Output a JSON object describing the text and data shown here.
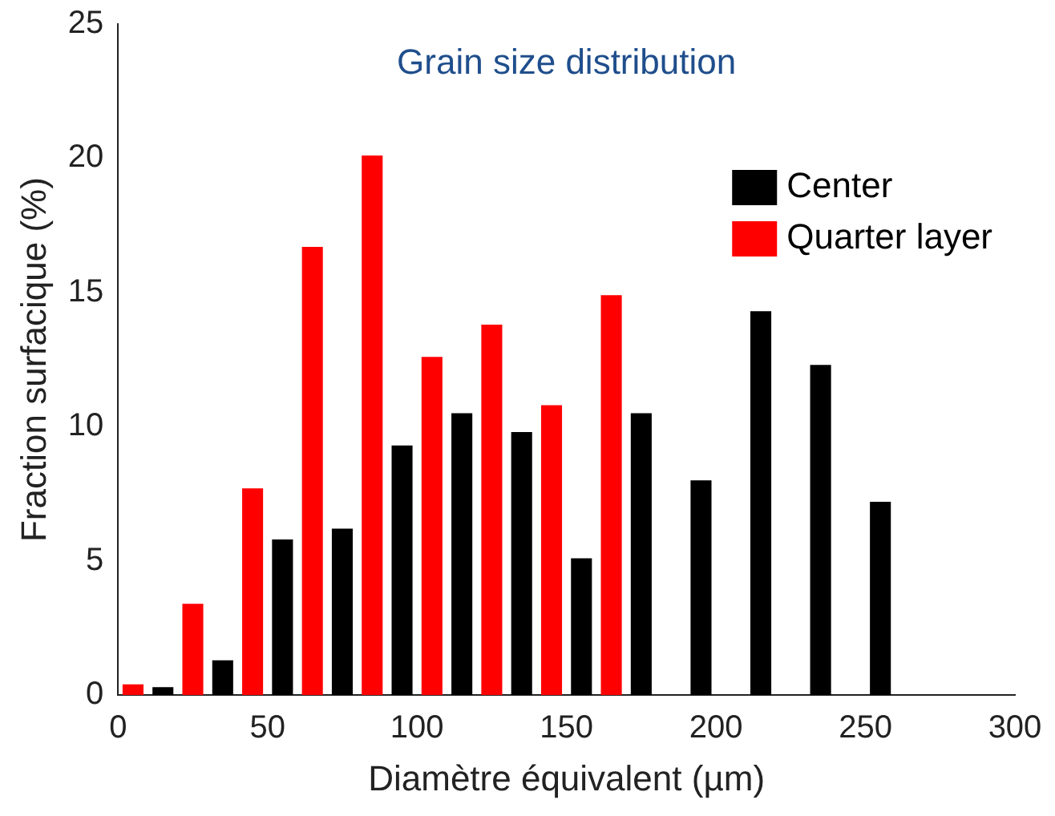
{
  "chart_data": {
    "type": "bar",
    "title": "Grain size distribution",
    "xlabel": "Diamètre équivalent (µm)",
    "ylabel": "Fraction surfacique (%)",
    "x": [
      10,
      30,
      50,
      70,
      90,
      110,
      130,
      150,
      170,
      190,
      210,
      230,
      250
    ],
    "series": [
      {
        "name": "Center",
        "color": "#000000",
        "values": [
          0.3,
          1.3,
          5.8,
          6.2,
          9.3,
          10.5,
          9.8,
          5.1,
          10.5,
          8.0,
          14.3,
          12.3,
          7.2
        ]
      },
      {
        "name": "Quarter layer",
        "color": "#ff0000",
        "values": [
          0.4,
          3.4,
          7.7,
          16.7,
          20.1,
          12.6,
          13.8,
          10.8,
          14.9,
          0,
          0,
          0,
          0
        ]
      }
    ],
    "xlim": [
      0,
      300
    ],
    "xticks": [
      0,
      50,
      100,
      150,
      200,
      250,
      300
    ],
    "ylim": [
      0,
      25
    ],
    "yticks": [
      0,
      5,
      10,
      15,
      20,
      25
    ],
    "grid": false,
    "legend": "top right"
  }
}
